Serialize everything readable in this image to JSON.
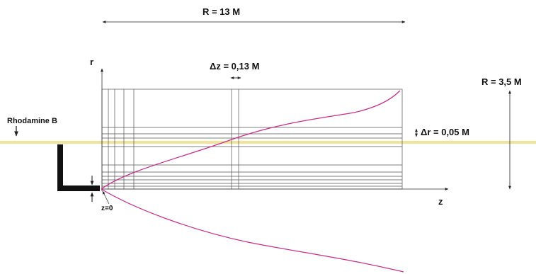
{
  "labels": {
    "domain_length": "R = 13 M",
    "dz": "Δz = 0,13 M",
    "right_extent": "R = 3,5 M",
    "tracer": "Rhodamine B",
    "dr": "Δr = 0,05 M",
    "r_axis": "r",
    "z_axis": "z",
    "origin": "z=0"
  },
  "colors": {
    "plume": "#cc2e8a",
    "water_surface": "#f2e39a",
    "outfall": "#111111",
    "grid": "#555555"
  }
}
